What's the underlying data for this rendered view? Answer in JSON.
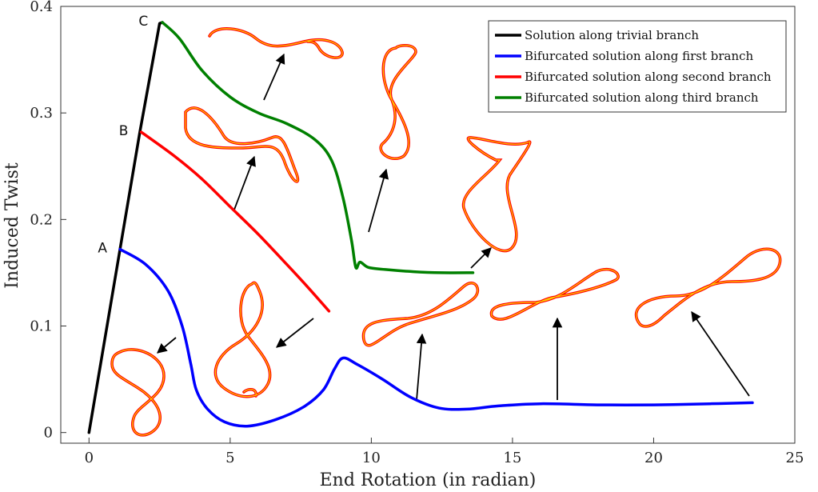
{
  "chart_data": {
    "type": "line",
    "xlabel": "End Rotation (in radian)",
    "ylabel": "Induced Twist",
    "xlim": [
      -1,
      25
    ],
    "ylim": [
      -0.01,
      0.4
    ],
    "x_ticks": [
      "0",
      "5",
      "10",
      "15",
      "20",
      "25"
    ],
    "y_ticks": [
      "0",
      "0.1",
      "0.2",
      "0.3",
      "0.4"
    ],
    "grid": false,
    "legend_position": "top-right",
    "series": [
      {
        "name": "Solution along trivial branch",
        "color": "#000000",
        "x": [
          0,
          1.1,
          1.8,
          2.5,
          2.6
        ],
        "y": [
          0,
          0.172,
          0.282,
          0.384,
          0.385
        ]
      },
      {
        "name": "Bifurcated solution along first branch",
        "color": "#0000ff",
        "x": [
          1.1,
          2.0,
          2.8,
          3.3,
          3.6,
          3.8,
          4.2,
          4.8,
          5.6,
          6.6,
          7.6,
          8.3,
          8.7,
          9.0,
          9.5,
          10.4,
          11.4,
          12.4,
          13.4,
          14.5,
          16,
          18,
          20,
          22,
          23.5
        ],
        "y": [
          0.172,
          0.158,
          0.133,
          0.1,
          0.065,
          0.04,
          0.022,
          0.01,
          0.006,
          0.012,
          0.024,
          0.04,
          0.06,
          0.07,
          0.064,
          0.05,
          0.033,
          0.023,
          0.022,
          0.025,
          0.027,
          0.026,
          0.026,
          0.027,
          0.028
        ]
      },
      {
        "name": "Bifurcated solution along second branch",
        "color": "#ff0000",
        "x": [
          1.85,
          3.0,
          4.0,
          5.0,
          6.0,
          7.0,
          7.8,
          8.5
        ],
        "y": [
          0.282,
          0.26,
          0.238,
          0.212,
          0.186,
          0.158,
          0.135,
          0.114
        ]
      },
      {
        "name": "Bifurcated solution along third branch",
        "color": "#008000",
        "x": [
          2.6,
          3.2,
          4.0,
          5.0,
          6.0,
          7.0,
          8.0,
          8.6,
          9.0,
          9.3,
          9.45,
          9.6,
          9.9,
          10.5,
          11.5,
          12.5,
          13.6
        ],
        "y": [
          0.385,
          0.37,
          0.34,
          0.315,
          0.3,
          0.29,
          0.275,
          0.255,
          0.22,
          0.18,
          0.155,
          0.16,
          0.155,
          0.153,
          0.151,
          0.15,
          0.15
        ]
      }
    ],
    "annotations": [
      {
        "text": "A",
        "x": 1.1,
        "y": 0.172
      },
      {
        "text": "B",
        "x": 1.85,
        "y": 0.282
      },
      {
        "text": "C",
        "x": 2.55,
        "y": 0.385
      }
    ]
  }
}
